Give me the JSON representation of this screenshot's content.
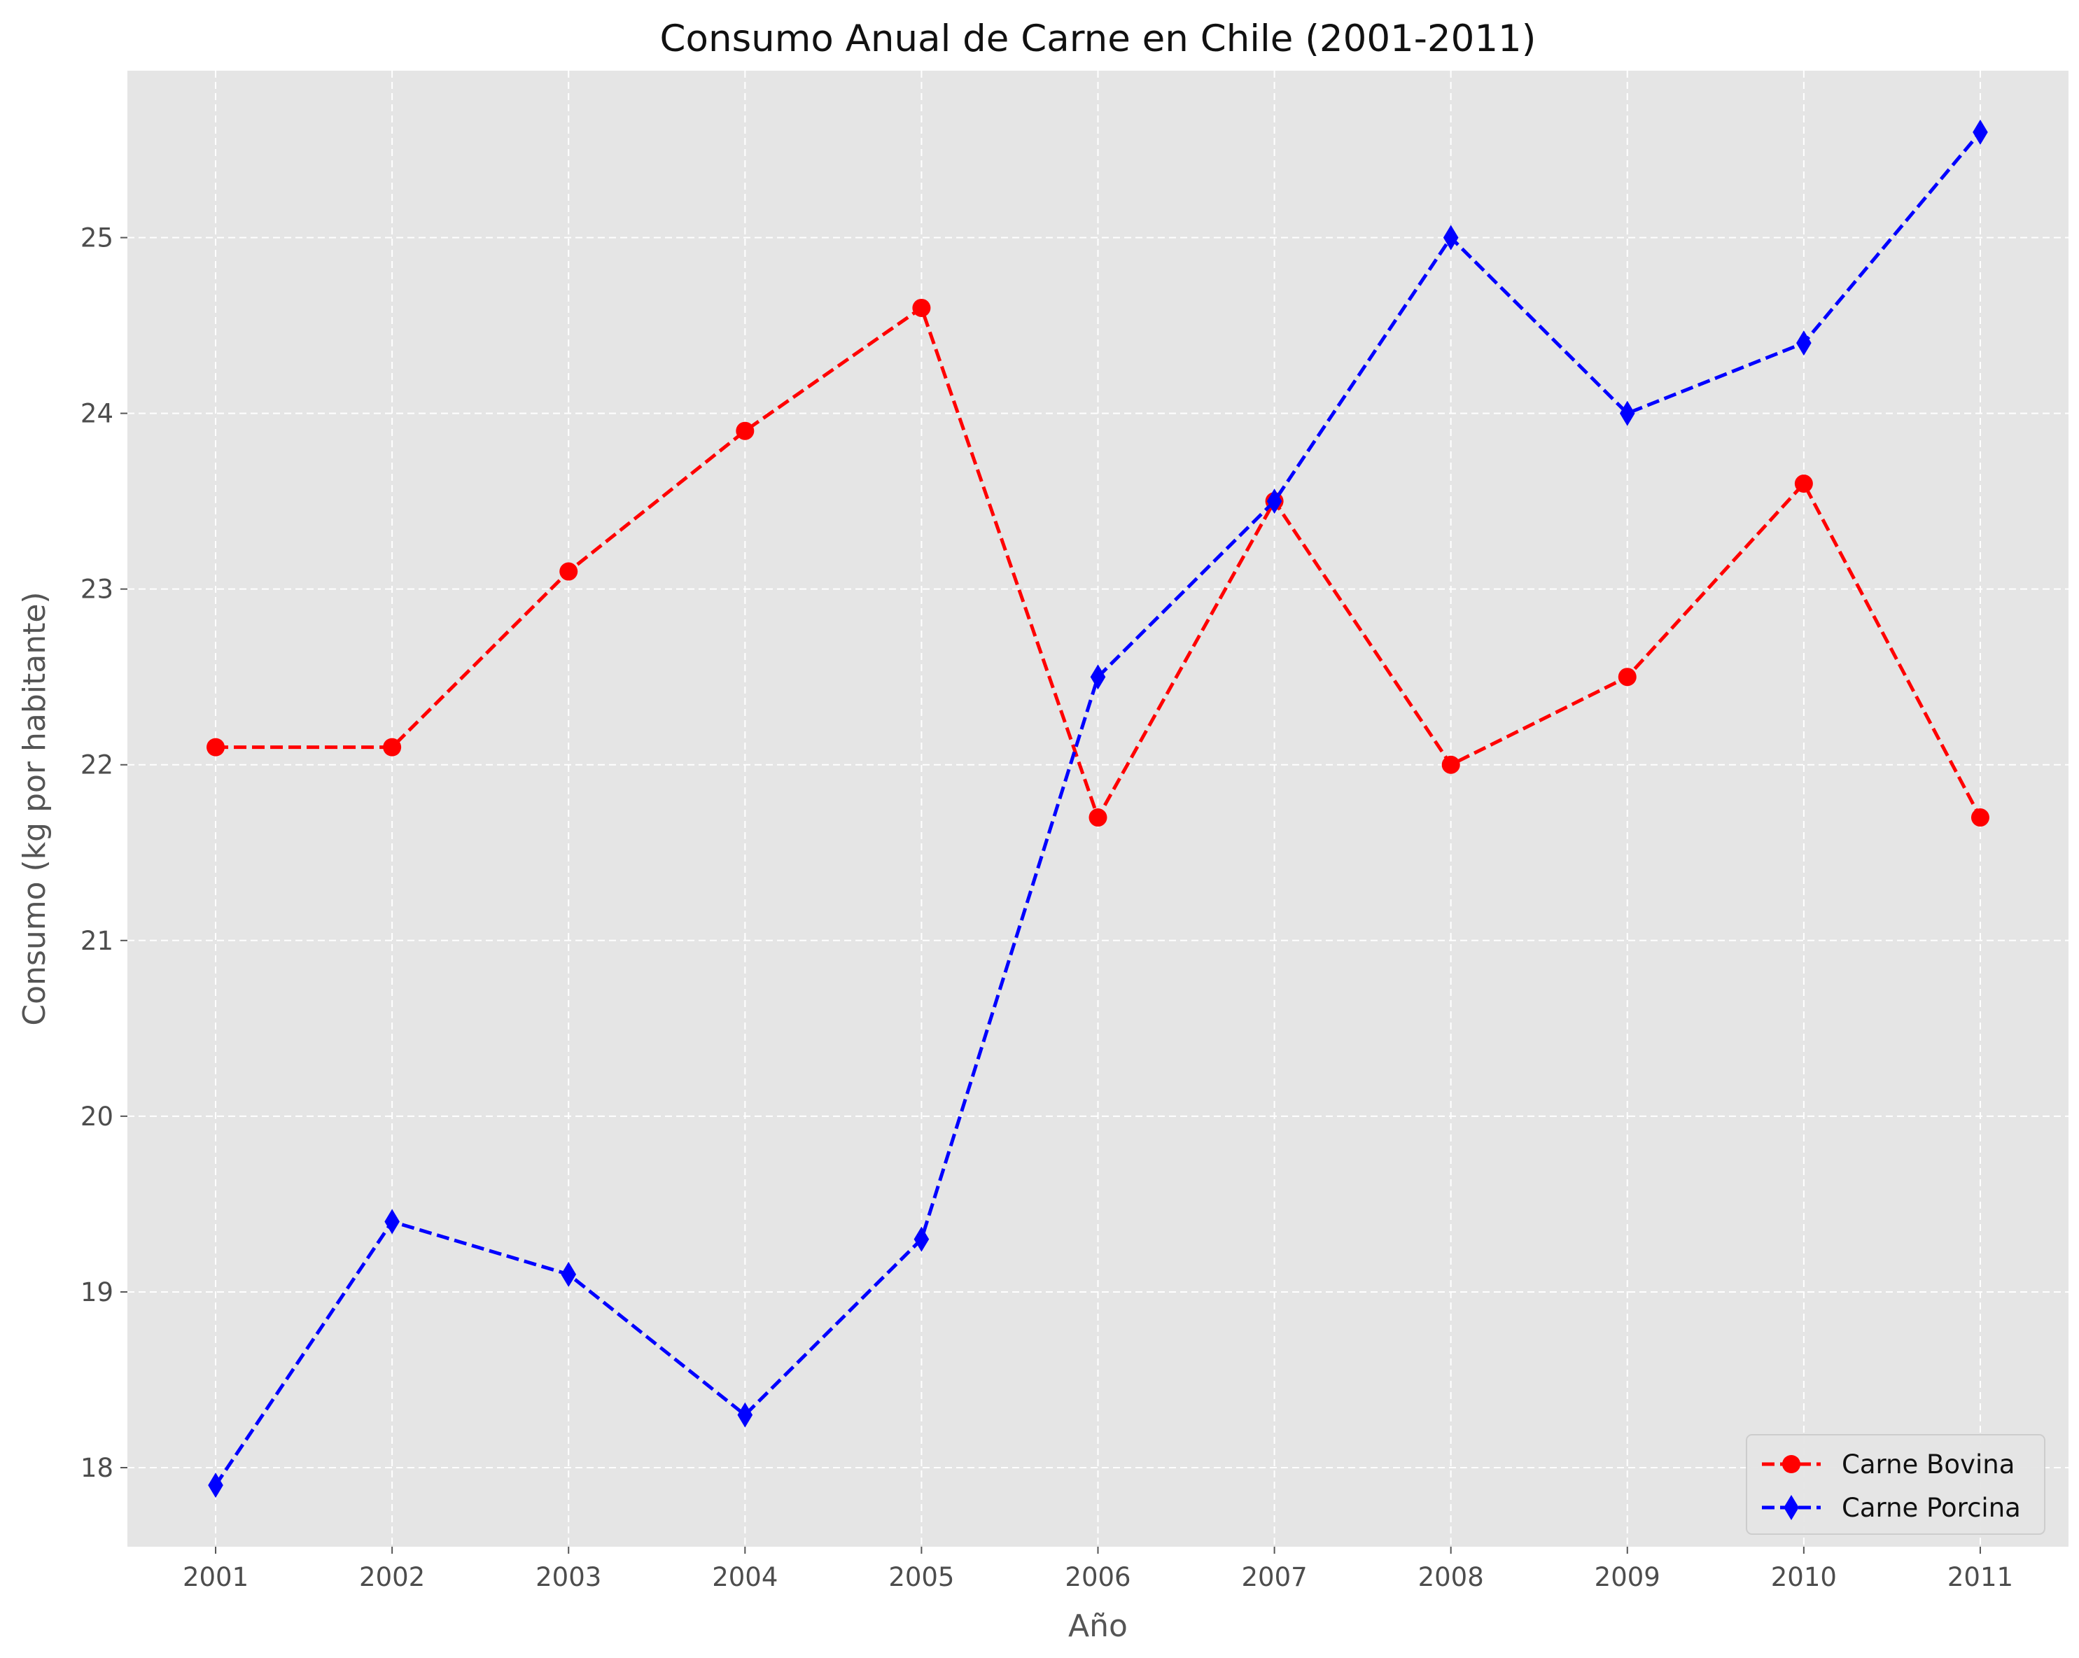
{
  "chart_data": {
    "type": "line",
    "title": "Consumo Anual de Carne en Chile (2001-2011)",
    "xlabel": "Año",
    "ylabel": "Consumo (kg por habitante)",
    "x": [
      "2001",
      "2002",
      "2003",
      "2004",
      "2005",
      "2006",
      "2007",
      "2008",
      "2009",
      "2010",
      "2011"
    ],
    "xlim": [
      2000.5,
      2011.5
    ],
    "ylim": [
      17.55,
      25.95
    ],
    "yticks": [
      18,
      19,
      20,
      21,
      22,
      23,
      24,
      25
    ],
    "grid": true,
    "legend_position": "bottom-right",
    "series": [
      {
        "name": "Carne Bovina",
        "color": "#ff0000",
        "marker": "circle",
        "line_style": "dashed",
        "values": [
          22.1,
          22.1,
          23.1,
          23.9,
          24.6,
          21.7,
          23.5,
          22.0,
          22.5,
          23.6,
          21.7
        ]
      },
      {
        "name": "Carne Porcina",
        "color": "#0000ff",
        "marker": "diamond",
        "line_style": "dashed",
        "values": [
          17.9,
          19.4,
          19.1,
          18.3,
          19.3,
          22.5,
          23.5,
          25.0,
          24.0,
          24.4,
          25.6
        ]
      }
    ]
  }
}
